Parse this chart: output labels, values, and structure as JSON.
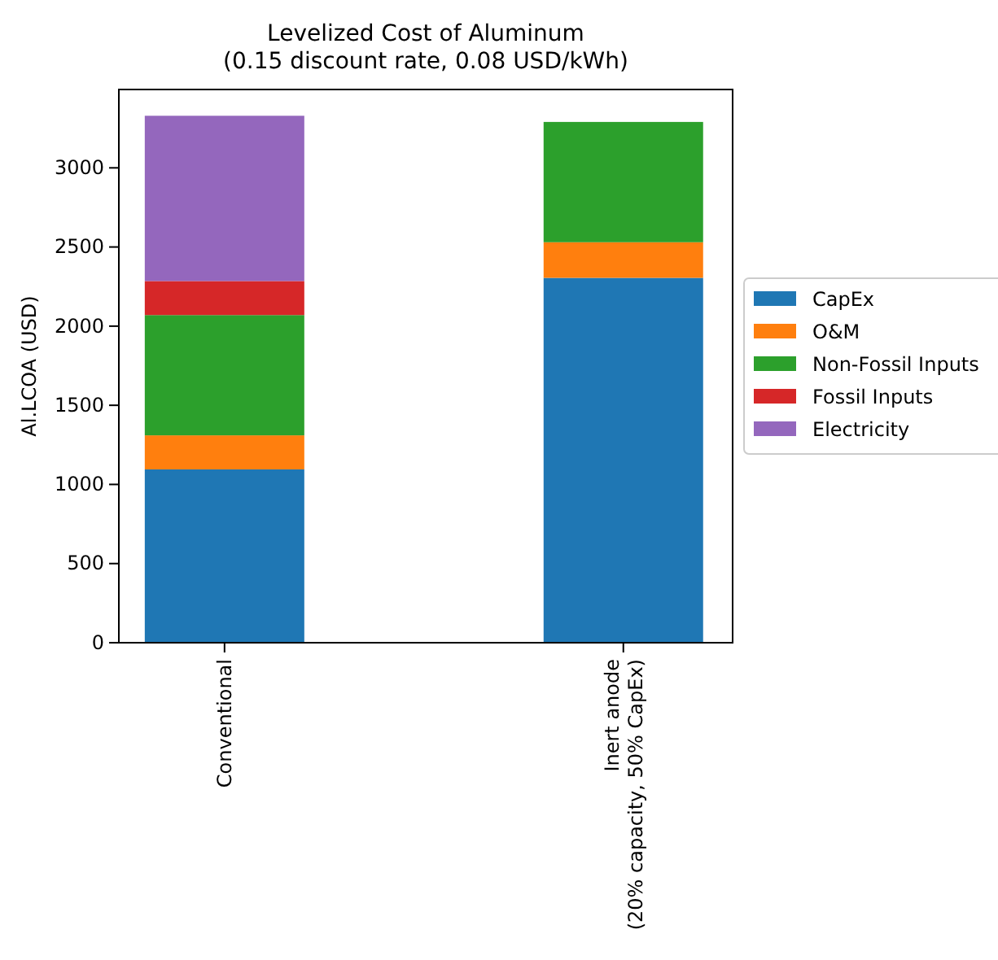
{
  "chart_data": {
    "type": "bar",
    "title": "Levelized Cost of Aluminum\n(0.15 discount rate, 0.08 USD/kWh)",
    "ylabel": "Al.LCOA (USD)",
    "categories": [
      "Conventional",
      "Inert anode\n(20% capacity, 50% CapEx)"
    ],
    "stacked": true,
    "series": [
      {
        "name": "CapEx",
        "color": "#1f77b4",
        "values": [
          1095,
          2305
        ]
      },
      {
        "name": "O&M",
        "color": "#ff7f0e",
        "values": [
          215,
          225
        ]
      },
      {
        "name": "Non-Fossil Inputs",
        "color": "#2ca02c",
        "values": [
          760,
          760
        ]
      },
      {
        "name": "Fossil Inputs",
        "color": "#d62728",
        "values": [
          215,
          0
        ]
      },
      {
        "name": "Electricity",
        "color": "#9467bd",
        "values": [
          1044,
          0
        ]
      }
    ],
    "ylim": [
      0,
      3495
    ],
    "yticks": [
      0,
      500,
      1000,
      1500,
      2000,
      2500,
      3000
    ],
    "legend": "right"
  }
}
